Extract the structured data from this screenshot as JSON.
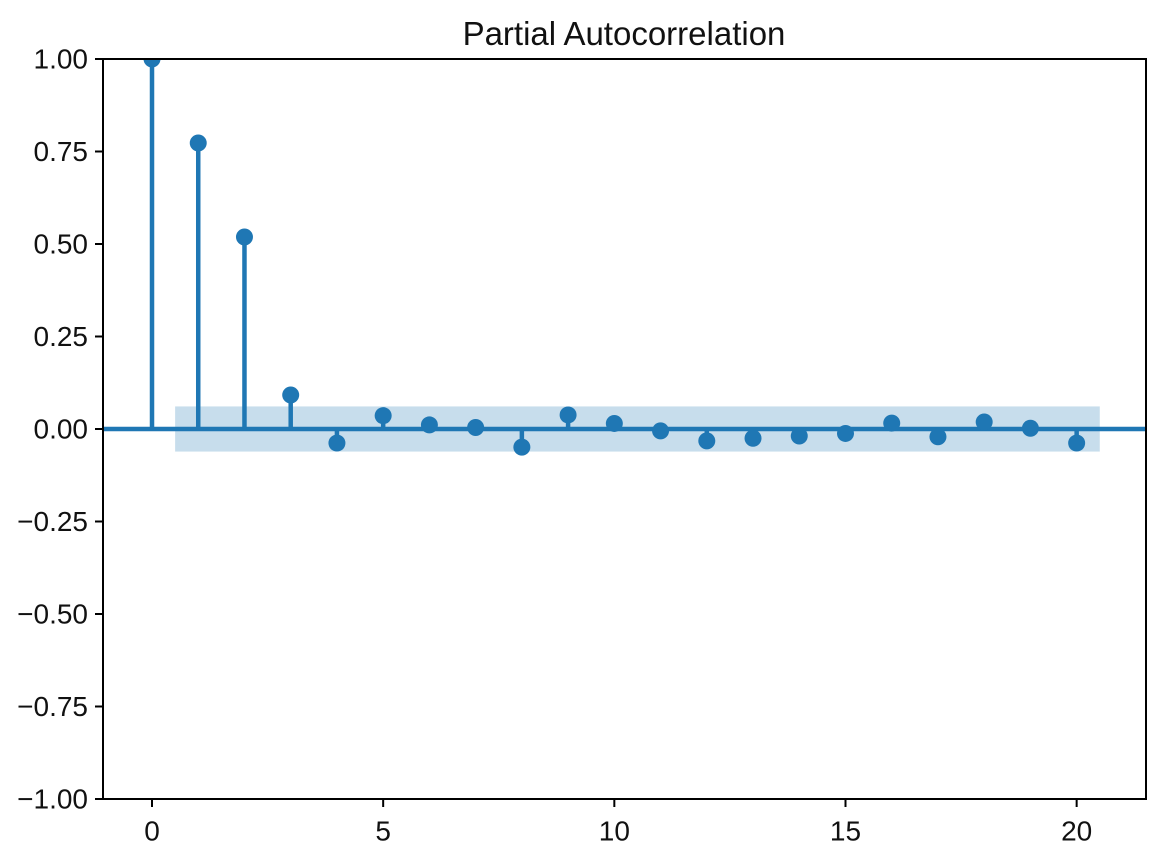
{
  "figure": {
    "background_color": "#ffffff",
    "accent_color": "#1f77b4",
    "band_opacity": 0.25,
    "text_color": "#111111",
    "spine_color": "#000000"
  },
  "chart_data": {
    "type": "stem",
    "title": "Partial Autocorrelation",
    "xlabel": "",
    "ylabel": "",
    "x": [
      0,
      1,
      2,
      3,
      4,
      5,
      6,
      7,
      8,
      9,
      10,
      11,
      12,
      13,
      14,
      15,
      16,
      17,
      18,
      19,
      20
    ],
    "values": [
      1.0,
      0.773,
      0.519,
      0.092,
      -0.038,
      0.036,
      0.011,
      0.004,
      -0.049,
      0.038,
      0.015,
      -0.005,
      -0.032,
      -0.025,
      -0.019,
      -0.012,
      0.016,
      -0.021,
      0.019,
      0.002,
      -0.038
    ],
    "confidence_band": {
      "y_low": -0.061,
      "y_high": 0.061,
      "x_start": 0.5,
      "x_end": 20.5
    },
    "zero_line_y": 0,
    "xlim": [
      -1.06,
      21.5
    ],
    "ylim": [
      -1.0,
      1.0
    ],
    "xticks": {
      "values": [
        0,
        5,
        10,
        15,
        20
      ],
      "labels": [
        "0",
        "5",
        "10",
        "15",
        "20"
      ]
    },
    "yticks": {
      "values": [
        1.0,
        0.75,
        0.5,
        0.25,
        0.0,
        -0.25,
        -0.5,
        -0.75,
        -1.0
      ],
      "labels": [
        "1.00",
        "0.75",
        "0.50",
        "0.25",
        "0.00",
        "−0.25",
        "−0.50",
        "−0.75",
        "−1.00"
      ]
    },
    "grid": false,
    "legend": null
  }
}
